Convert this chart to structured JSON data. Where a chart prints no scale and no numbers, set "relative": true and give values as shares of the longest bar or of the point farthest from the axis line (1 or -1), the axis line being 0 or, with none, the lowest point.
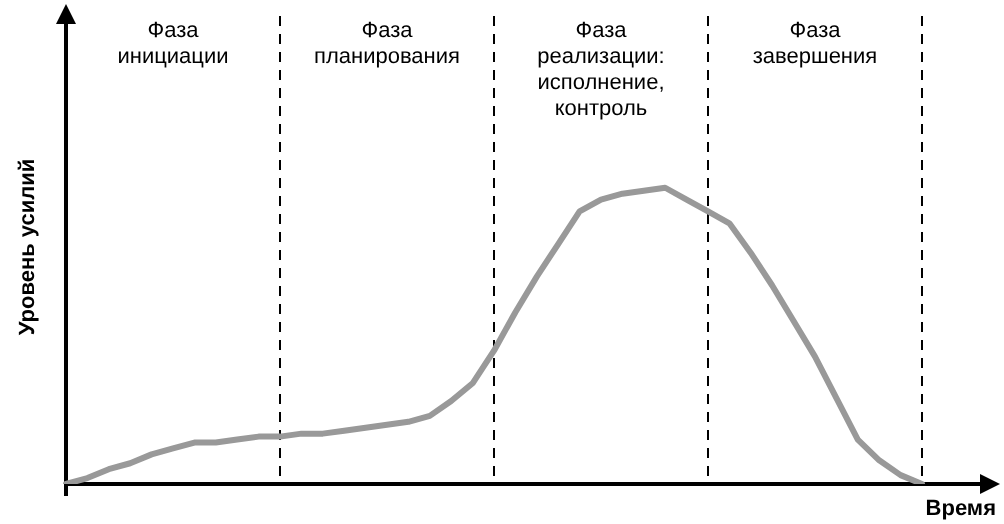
{
  "chart_data": {
    "type": "line",
    "relative": true,
    "ylabel": "Уровень усилий",
    "xlabel": "Время",
    "annotations": [
      "Фаза\nинициации",
      "Фаза\nпланирования",
      "Фаза\nреализации:\nисполнение,\nконтроль",
      "Фаза\nзавершения"
    ],
    "categories": [
      null,
      null,
      null,
      null,
      null,
      null,
      null,
      null,
      null,
      null,
      null,
      null,
      null,
      null,
      null,
      null,
      null,
      null,
      null,
      null,
      null,
      null,
      null,
      null,
      null,
      null,
      null,
      null,
      null,
      null,
      null,
      null,
      null,
      null,
      null,
      null,
      null,
      null,
      null,
      null,
      null
    ],
    "series": [
      {
        "color": "#999999",
        "values": [
          0,
          0.02,
          0.05,
          0.07,
          0.1,
          0.12,
          0.14,
          0.14,
          0.15,
          0.16,
          0.16,
          0.17,
          0.17,
          0.18,
          0.19,
          0.2,
          0.21,
          0.23,
          0.28,
          0.34,
          0.45,
          0.58,
          0.7,
          0.81,
          0.92,
          0.96,
          0.98,
          0.99,
          1,
          0.96,
          0.92,
          0.88,
          0.78,
          0.67,
          0.55,
          0.43,
          0.29,
          0.15,
          0.08,
          0.03,
          0
        ]
      }
    ],
    "tick_labels": false,
    "grid": "x",
    "legend": false,
    "marker": "none",
    "line_style": "solid"
  }
}
